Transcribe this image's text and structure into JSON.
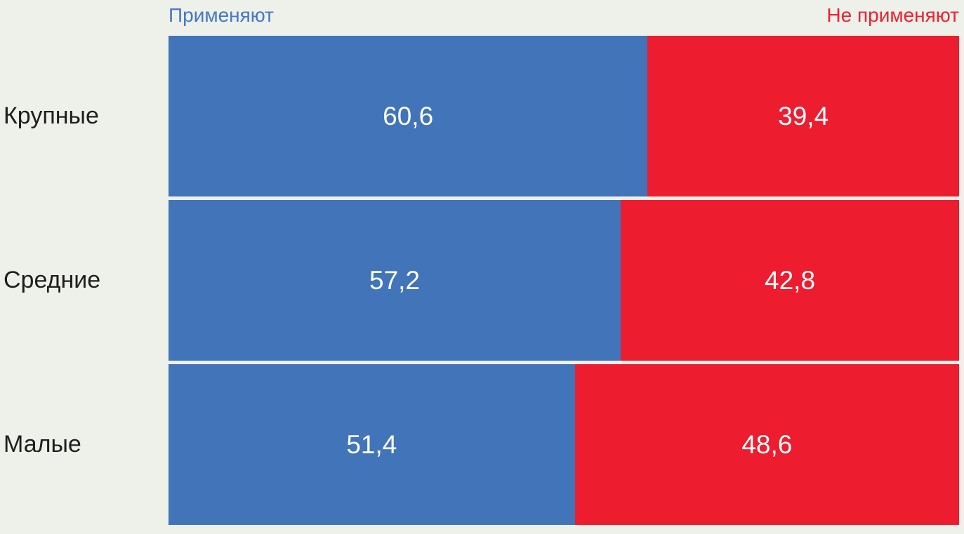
{
  "background_color": "#eef0ea",
  "colors": {
    "apply_bar": "#4174b9",
    "not_apply_bar": "#ed1c2e",
    "legend_apply_text": "#4678c6",
    "legend_not_apply_text": "#ee2230",
    "category_text": "#1e1e1e",
    "value_text": "#ffffff"
  },
  "legend": {
    "apply_label": "Применяют",
    "not_apply_label": "Не применяют"
  },
  "chart_data": {
    "type": "bar",
    "orientation": "horizontal",
    "stacked": true,
    "percent_stacked": true,
    "title": "",
    "xlabel": "",
    "ylabel": "",
    "xlim": [
      0,
      100
    ],
    "grid": false,
    "legend_position": "top",
    "categories": [
      "Крупные",
      "Средние",
      "Малые"
    ],
    "series": [
      {
        "name": "Применяют",
        "color": "#4174b9",
        "values": [
          60.6,
          57.2,
          51.4
        ]
      },
      {
        "name": "Не применяют",
        "color": "#ed1c2e",
        "values": [
          39.4,
          42.8,
          48.6
        ]
      }
    ],
    "value_labels": [
      [
        "60,6",
        "39,4"
      ],
      [
        "57,2",
        "42,8"
      ],
      [
        "51,4",
        "48,6"
      ]
    ]
  }
}
